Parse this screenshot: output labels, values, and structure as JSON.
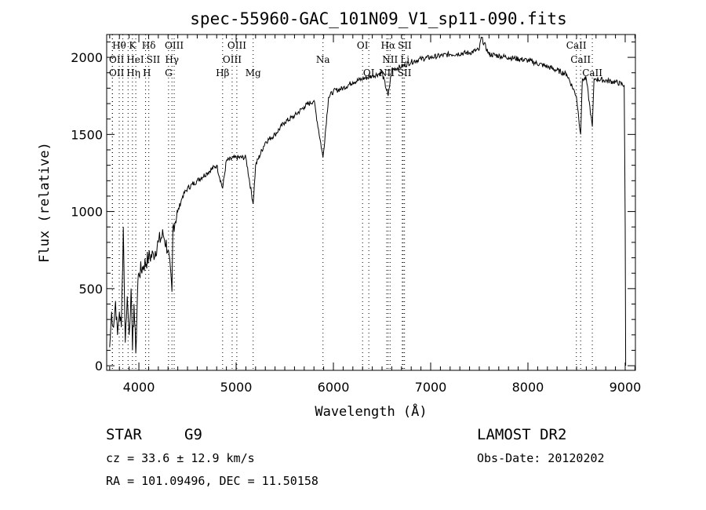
{
  "chart_data": {
    "type": "line",
    "title": "spec-55960-GAC_101N09_V1_sp11-090.fits",
    "xlabel": "Wavelength (Å)",
    "ylabel": "Flux (relative)",
    "xlim": [
      3669,
      9105
    ],
    "ylim": [
      -30,
      2148
    ],
    "xticks": [
      4000,
      5000,
      6000,
      7000,
      8000,
      9000
    ],
    "yticks": [
      0,
      500,
      1000,
      1500,
      2000
    ],
    "grid": false,
    "series": [
      {
        "name": "spectrum",
        "x": [
          3700,
          3720,
          3740,
          3760,
          3780,
          3800,
          3820,
          3840,
          3860,
          3880,
          3900,
          3920,
          3934,
          3950,
          3968,
          3990,
          4000,
          4050,
          4100,
          4150,
          4200,
          4250,
          4300,
          4340,
          4350,
          4400,
          4450,
          4500,
          4600,
          4700,
          4800,
          4861,
          4900,
          5000,
          5100,
          5175,
          5200,
          5300,
          5400,
          5500,
          5600,
          5700,
          5800,
          5893,
          5950,
          6000,
          6100,
          6200,
          6300,
          6400,
          6500,
          6563,
          6600,
          6700,
          6800,
          6900,
          7000,
          7200,
          7400,
          7500,
          7520,
          7600,
          7800,
          8000,
          8200,
          8400,
          8498,
          8542,
          8560,
          8600,
          8662,
          8680,
          8700,
          8900,
          8990,
          9000,
          9005
        ],
        "values": [
          120,
          350,
          250,
          420,
          200,
          350,
          250,
          900,
          150,
          450,
          200,
          500,
          100,
          400,
          80,
          550,
          600,
          650,
          700,
          720,
          800,
          850,
          750,
          480,
          900,
          1000,
          1100,
          1150,
          1200,
          1250,
          1300,
          1150,
          1330,
          1350,
          1350,
          1050,
          1300,
          1450,
          1500,
          1580,
          1620,
          1680,
          1720,
          1350,
          1740,
          1780,
          1800,
          1840,
          1860,
          1880,
          1900,
          1750,
          1920,
          1940,
          1970,
          1990,
          2000,
          2020,
          2030,
          2050,
          2130,
          2020,
          2000,
          1980,
          1940,
          1890,
          1750,
          1500,
          1860,
          1860,
          1550,
          1860,
          1860,
          1840,
          1820,
          900,
          0
        ]
      }
    ],
    "line_markers": [
      {
        "label": "Hθ",
        "wl": 3798,
        "row": 1
      },
      {
        "label": "K",
        "wl": 3934,
        "row": 1
      },
      {
        "label": "Hδ",
        "wl": 4102,
        "row": 1
      },
      {
        "label": "OIII",
        "wl": 4363,
        "row": 1
      },
      {
        "label": "OIII",
        "wl": 5007,
        "row": 1
      },
      {
        "label": "OI",
        "wl": 6300,
        "row": 1
      },
      {
        "label": "Hα",
        "wl": 6563,
        "row": 1
      },
      {
        "label": "SII",
        "wl": 6717,
        "row": 1
      },
      {
        "label": "CaII",
        "wl": 8498,
        "row": 1
      },
      {
        "label": "OII",
        "wl": 3727,
        "row": 2
      },
      {
        "label": "HeI",
        "wl": 3889,
        "row": 2
      },
      {
        "label": "SII",
        "wl": 4069,
        "row": 2
      },
      {
        "label": "Hγ",
        "wl": 4340,
        "row": 2
      },
      {
        "label": "OIII",
        "wl": 4959,
        "row": 2
      },
      {
        "label": "Na",
        "wl": 5893,
        "row": 2
      },
      {
        "label": "NII",
        "wl": 6583,
        "row": 2
      },
      {
        "label": "Li",
        "wl": 6708,
        "row": 2
      },
      {
        "label": "CaII",
        "wl": 8542,
        "row": 2
      },
      {
        "label": "OII",
        "wl": 3729,
        "row": 3
      },
      {
        "label": "Hη",
        "wl": 3835,
        "row": 3
      },
      {
        "label": "H",
        "wl": 3968,
        "row": 3
      },
      {
        "label": "G",
        "wl": 4305,
        "row": 3
      },
      {
        "label": "Hβ",
        "wl": 4861,
        "row": 3
      },
      {
        "label": "Mg",
        "wl": 5175,
        "row": 3
      },
      {
        "label": "OI",
        "wl": 6364,
        "row": 3
      },
      {
        "label": "NII",
        "wl": 6548,
        "row": 3
      },
      {
        "label": "SII",
        "wl": 6731,
        "row": 3
      },
      {
        "label": "CaII",
        "wl": 8662,
        "row": 3
      }
    ]
  },
  "info": {
    "object_class": "STAR",
    "subclass": "G9",
    "survey": "LAMOST DR2",
    "cz": "cz = 33.6 ± 12.9 km/s",
    "obs_date": "Obs-Date: 20120202",
    "coords": "RA = 101.09496, DEC =  11.50158"
  }
}
